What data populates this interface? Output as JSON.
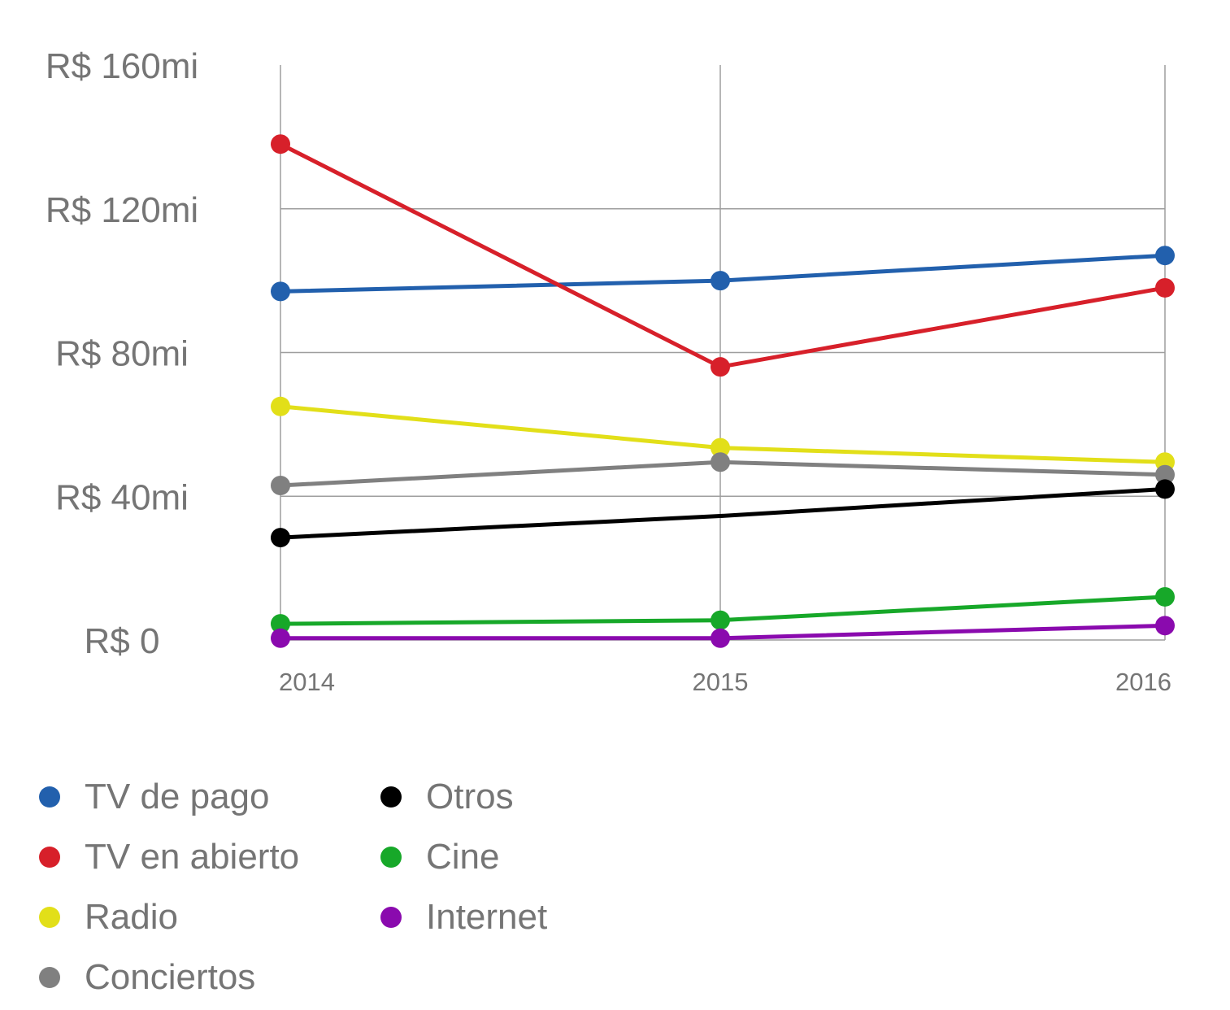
{
  "chart_data": {
    "type": "line",
    "title": "",
    "xlabel": "",
    "ylabel": "",
    "x": [
      "2014",
      "2015",
      "2016"
    ],
    "ylim": [
      0,
      160
    ],
    "y_ticks": [
      {
        "value": 0,
        "label": "R$ 0"
      },
      {
        "value": 40,
        "label": "R$ 40mi"
      },
      {
        "value": 80,
        "label": "R$ 80mi"
      },
      {
        "value": 120,
        "label": "R$ 120mi"
      },
      {
        "value": 160,
        "label": "R$ 160mi"
      }
    ],
    "grid": true,
    "legend_position": "bottom",
    "series": [
      {
        "name": "TV de pago",
        "color": "#2260ad",
        "values": [
          97,
          100,
          107
        ],
        "markers": [
          true,
          true,
          true
        ]
      },
      {
        "name": "TV en abierto",
        "color": "#d7202a",
        "values": [
          138,
          76,
          98
        ],
        "markers": [
          true,
          true,
          true
        ]
      },
      {
        "name": "Radio",
        "color": "#e2df19",
        "values": [
          65,
          53.5,
          49.5
        ],
        "markers": [
          true,
          true,
          true
        ]
      },
      {
        "name": "Conciertos",
        "color": "#808080",
        "values": [
          43,
          49.5,
          46
        ],
        "markers": [
          true,
          true,
          true
        ]
      },
      {
        "name": "Otros",
        "color": "#000000",
        "values": [
          28.5,
          34.5,
          42
        ],
        "markers": [
          true,
          false,
          true
        ]
      },
      {
        "name": "Cine",
        "color": "#17a829",
        "values": [
          4.5,
          5.5,
          12
        ],
        "markers": [
          true,
          true,
          true
        ]
      },
      {
        "name": "Internet",
        "color": "#8a0aae",
        "values": [
          0.5,
          0.5,
          4
        ],
        "markers": [
          true,
          true,
          true
        ]
      }
    ]
  }
}
